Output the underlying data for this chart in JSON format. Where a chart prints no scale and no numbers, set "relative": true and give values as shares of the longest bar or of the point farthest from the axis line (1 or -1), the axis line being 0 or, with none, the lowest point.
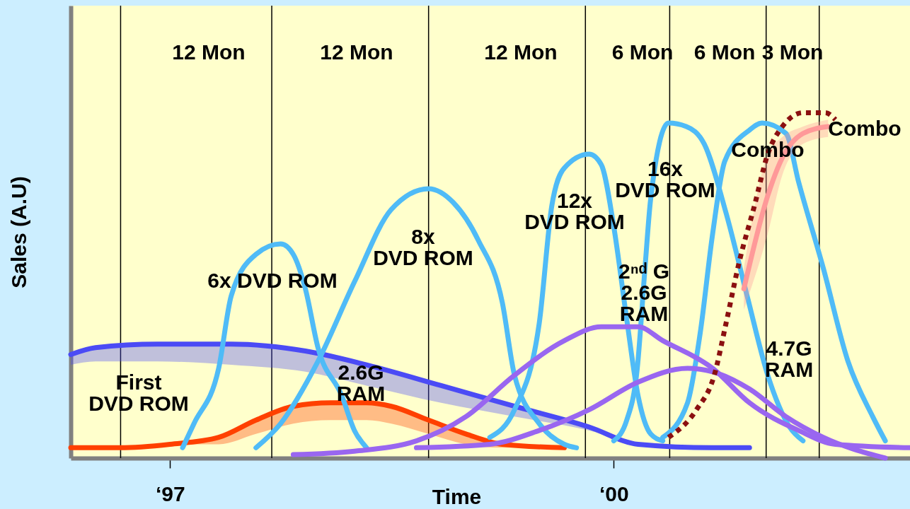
{
  "chart_data": {
    "type": "line",
    "relative": true,
    "xlabel": "Time",
    "ylabel": "Sales (A.U)",
    "xlim": [
      "1996-05",
      "2002-01"
    ],
    "xticks": [
      {
        "value": "1997",
        "label": "‘97"
      },
      {
        "value": "2000",
        "label": "‘00"
      }
    ],
    "grid": false,
    "line_style": "solid",
    "series": [
      {
        "color": "#4b4bf5",
        "x": [
          "1996-05",
          "1996-07",
          "1996-12",
          "1997-06",
          "1997-12",
          "1998-05",
          "1998-11",
          "1999-05",
          "1999-11",
          "2000-03",
          "2000-09",
          "2000-12"
        ],
        "values": [
          0.3,
          0.32,
          0.33,
          0.33,
          0.31,
          0.27,
          0.21,
          0.15,
          0.09,
          0.04,
          0.03,
          0.03
        ],
        "lower": [
          0.27,
          0.28,
          0.28,
          0.27,
          0.25,
          0.21,
          0.16,
          0.12,
          0.08,
          0.04,
          0.03,
          0.03
        ],
        "upper": [
          0.3,
          0.32,
          0.33,
          0.33,
          0.31,
          0.27,
          0.21,
          0.15,
          0.09,
          0.04,
          0.03,
          0.03
        ]
      },
      {
        "color": "#ff4000",
        "x": [
          "1996-05",
          "1996-09",
          "1997-01",
          "1997-05",
          "1997-08",
          "1997-11",
          "1998-02",
          "1998-05",
          "1998-07",
          "1998-10",
          "1999-01",
          "1999-04",
          "1999-09"
        ],
        "values": [
          0.03,
          0.03,
          0.04,
          0.06,
          0.11,
          0.15,
          0.16,
          0.16,
          0.15,
          0.11,
          0.07,
          0.04,
          0.03
        ],
        "lower": [
          0.03,
          0.03,
          0.04,
          0.04,
          0.07,
          0.1,
          0.11,
          0.11,
          0.1,
          0.07,
          0.04,
          0.03,
          0.03
        ],
        "upper": [
          0.03,
          0.03,
          0.04,
          0.06,
          0.11,
          0.15,
          0.16,
          0.16,
          0.15,
          0.11,
          0.07,
          0.04,
          0.03
        ]
      },
      {
        "color": "#4fbbf7",
        "x": [
          "1997-02",
          "1997-03",
          "1997-05",
          "1997-06",
          "1997-08",
          "1997-10",
          "1997-11",
          "1997-12",
          "1998-01",
          "1998-03",
          "1998-04",
          "1998-05"
        ],
        "values": [
          0.03,
          0.1,
          0.26,
          0.47,
          0.59,
          0.62,
          0.59,
          0.49,
          0.32,
          0.18,
          0.08,
          0.03
        ]
      },
      {
        "color": "#4fbbf7",
        "x": [
          "1997-08",
          "1997-10",
          "1998-01",
          "1998-04",
          "1998-07",
          "1998-10",
          "1998-12",
          "1999-02",
          "1999-04",
          "1999-05",
          "1999-07",
          "1999-09",
          "1999-10"
        ],
        "values": [
          0.03,
          0.1,
          0.28,
          0.51,
          0.72,
          0.78,
          0.74,
          0.63,
          0.45,
          0.24,
          0.1,
          0.04,
          0.03
        ]
      },
      {
        "color": "#4fbbf7",
        "x": [
          "1999-03",
          "1999-05",
          "1999-07",
          "1999-08",
          "1999-09",
          "1999-11",
          "1999-12",
          "2000-01",
          "2000-02",
          "2000-03",
          "2000-04",
          "2000-05"
        ],
        "values": [
          0.06,
          0.14,
          0.39,
          0.73,
          0.84,
          0.88,
          0.85,
          0.67,
          0.41,
          0.18,
          0.07,
          0.05
        ]
      },
      {
        "color": "#4fbbf7",
        "x": [
          "2000-01-01",
          "2000-02-02",
          "2000-02-28",
          "2000-03-18",
          "2000-04-01",
          "2000-05-15",
          "2000-06-28",
          "2000-08-11",
          "2000-10-04",
          "2000-11-25",
          "2001-01-15",
          "2001-03-10",
          "2001-04-12"
        ],
        "values": [
          0.05,
          0.11,
          0.26,
          0.55,
          0.75,
          0.97,
          0.96,
          0.91,
          0.71,
          0.47,
          0.24,
          0.09,
          0.05
        ]
      },
      {
        "color": "#4fbbf7",
        "x": [
          "2000-05",
          "2000-07",
          "2000-08",
          "2000-09",
          "2000-10",
          "2000-12",
          "2001-01",
          "2001-03",
          "2001-04",
          "2001-06",
          "2001-08",
          "2001-10",
          "2001-11"
        ],
        "values": [
          0.06,
          0.16,
          0.36,
          0.65,
          0.86,
          0.95,
          0.97,
          0.94,
          0.8,
          0.55,
          0.28,
          0.12,
          0.05
        ]
      },
      {
        "color": "#9966f0",
        "x": [
          "1997-11",
          "1998-04",
          "1998-09",
          "1999-01",
          "1999-05",
          "1999-09",
          "1999-12",
          "2000-03",
          "2000-05",
          "2000-09",
          "2000-12",
          "2001-04",
          "2001-07",
          "2002-01"
        ],
        "values": [
          0.01,
          0.02,
          0.05,
          0.12,
          0.24,
          0.34,
          0.38,
          0.38,
          0.34,
          0.26,
          0.16,
          0.08,
          0.04,
          0.03
        ]
      },
      {
        "color": "#9966f0",
        "x": [
          "1998-09",
          "1999-03",
          "1999-07",
          "1999-11",
          "2000-03",
          "2000-07",
          "2000-09",
          "2000-12",
          "2001-03",
          "2001-06",
          "2001-11"
        ],
        "values": [
          0.03,
          0.04,
          0.08,
          0.14,
          0.22,
          0.26,
          0.25,
          0.2,
          0.12,
          0.06,
          0.0
        ]
      },
      {
        "color": "#ff9999",
        "x": [
          "2000-11-17",
          "2001-01-15",
          "2001-02-20",
          "2001-04-12",
          "2001-06-13"
        ],
        "values": [
          0.49,
          0.76,
          0.87,
          0.94,
          0.96
        ],
        "lower": [
          0.43,
          0.65,
          0.82,
          0.91,
          0.93
        ],
        "upper": [
          0.55,
          0.88,
          0.93,
          0.96,
          0.98
        ]
      },
      {
        "color": "#8b1010",
        "line_style": "dotted",
        "x": [
          "2000-05-15",
          "2000-07-23",
          "2000-09-05",
          "2000-10-04",
          "2000-11-06",
          "2000-12-13",
          "2001-01-15",
          "2001-02-20",
          "2001-04-12",
          "2001-06-06",
          "2001-07-01"
        ],
        "values": [
          0.06,
          0.14,
          0.24,
          0.39,
          0.57,
          0.73,
          0.88,
          0.96,
          1.0,
          1.0,
          0.98
        ]
      }
    ],
    "ref_lines": [
      {
        "axis": "x",
        "value": "1996-09-01",
        "color": "#000000"
      },
      {
        "axis": "x",
        "value": "1997-09-09",
        "color": "#000000"
      },
      {
        "axis": "x",
        "value": "1998-10-01",
        "color": "#000000"
      },
      {
        "axis": "x",
        "value": "1999-10-23",
        "color": "#000000"
      },
      {
        "axis": "x",
        "value": "2000-05-18",
        "color": "#000000"
      },
      {
        "axis": "x",
        "value": "2001-01-11",
        "color": "#000000"
      },
      {
        "axis": "x",
        "value": "2001-05-22",
        "color": "#000000"
      }
    ],
    "annotations": [
      "12 Mon",
      "12 Mon",
      "12 Mon",
      "6 Mon",
      "6 Mon",
      "3 Mon",
      "First\nDVD ROM",
      "6x DVD ROM",
      "2.6G\nRAM",
      "8x\nDVD ROM",
      "12x\nDVD ROM",
      "16x\nDVD ROM",
      "2ⁿᵈ G\n2.6G\nRAM",
      "4.7G\nRAM",
      "Combo",
      "Combo"
    ]
  }
}
